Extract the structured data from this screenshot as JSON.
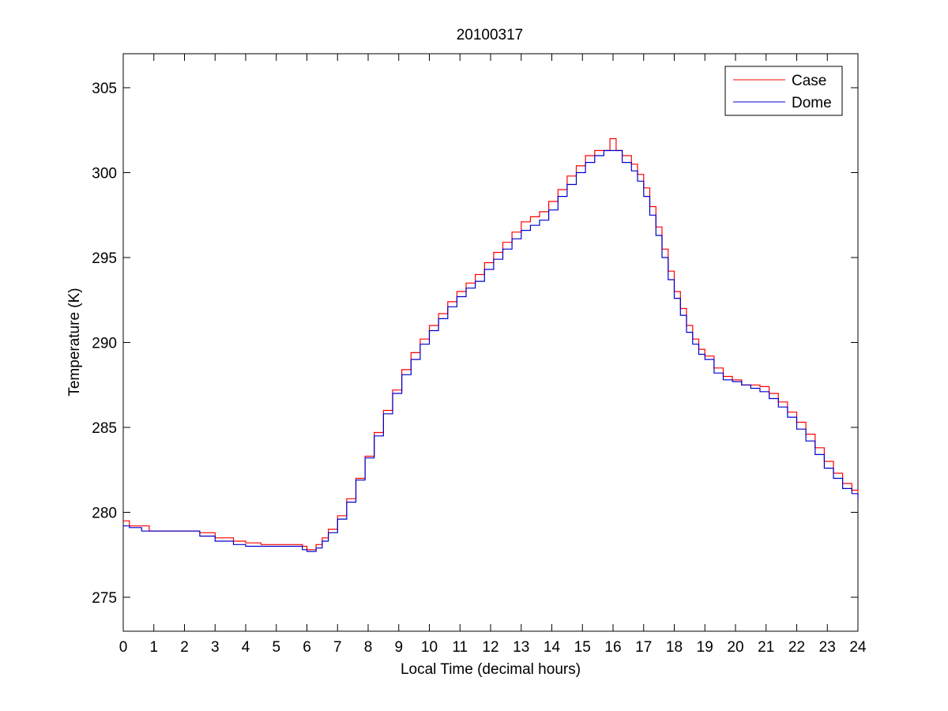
{
  "chart_data": {
    "type": "line",
    "title": "20100317",
    "xlabel": "Local Time (decimal hours)",
    "ylabel": "Temperature (K)",
    "xlim": [
      0,
      24
    ],
    "ylim": [
      273,
      307
    ],
    "xticks": [
      0,
      1,
      2,
      3,
      4,
      5,
      6,
      7,
      8,
      9,
      10,
      11,
      12,
      13,
      14,
      15,
      16,
      17,
      18,
      19,
      20,
      21,
      22,
      23,
      24
    ],
    "yticks": [
      275,
      280,
      285,
      290,
      295,
      300,
      305
    ],
    "grid": false,
    "legend": {
      "position": "top-right",
      "entries": [
        "Case",
        "Dome"
      ]
    },
    "series": [
      {
        "name": "Case",
        "color": "#ff0000",
        "x": [
          0.0,
          0.2,
          0.6,
          0.85,
          2.0,
          2.5,
          3.0,
          3.6,
          4.0,
          4.5,
          5.0,
          5.5,
          5.85,
          6.0,
          6.3,
          6.5,
          6.7,
          7.0,
          7.3,
          7.6,
          7.9,
          8.2,
          8.5,
          8.8,
          9.1,
          9.4,
          9.7,
          10.0,
          10.3,
          10.6,
          10.9,
          11.2,
          11.5,
          11.8,
          12.1,
          12.4,
          12.7,
          13.0,
          13.3,
          13.6,
          13.9,
          14.2,
          14.5,
          14.8,
          15.1,
          15.4,
          15.7,
          15.9,
          16.1,
          16.3,
          16.6,
          16.8,
          17.0,
          17.2,
          17.4,
          17.6,
          17.8,
          18.0,
          18.2,
          18.4,
          18.6,
          18.8,
          19.0,
          19.3,
          19.6,
          19.9,
          20.2,
          20.5,
          20.8,
          21.1,
          21.4,
          21.7,
          22.0,
          22.3,
          22.6,
          22.9,
          23.2,
          23.5,
          23.8,
          24.0
        ],
        "y": [
          279.5,
          279.2,
          279.2,
          278.9,
          278.9,
          278.8,
          278.5,
          278.3,
          278.2,
          278.1,
          278.1,
          278.1,
          278.0,
          277.8,
          278.1,
          278.5,
          279.0,
          279.8,
          280.8,
          282.0,
          283.3,
          284.7,
          286.0,
          287.2,
          288.4,
          289.4,
          290.2,
          291.0,
          291.7,
          292.4,
          293.0,
          293.5,
          294.0,
          294.7,
          295.3,
          295.9,
          296.5,
          297.1,
          297.4,
          297.7,
          298.3,
          299.0,
          299.8,
          300.4,
          301.0,
          301.3,
          301.3,
          302.0,
          301.3,
          301.0,
          300.5,
          299.9,
          299.1,
          298.0,
          296.8,
          295.5,
          294.2,
          293.0,
          292.0,
          291.0,
          290.2,
          289.6,
          289.2,
          288.5,
          288.0,
          287.8,
          287.5,
          287.5,
          287.4,
          287.0,
          286.5,
          285.9,
          285.3,
          284.6,
          283.8,
          283.0,
          282.3,
          281.7,
          281.3,
          281.0
        ]
      },
      {
        "name": "Dome",
        "color": "#0000cc",
        "x": [
          0.0,
          0.2,
          0.6,
          0.85,
          2.0,
          2.5,
          3.0,
          3.6,
          4.0,
          4.5,
          5.0,
          5.5,
          5.85,
          6.0,
          6.3,
          6.5,
          6.7,
          7.0,
          7.3,
          7.6,
          7.9,
          8.2,
          8.5,
          8.8,
          9.1,
          9.4,
          9.7,
          10.0,
          10.3,
          10.6,
          10.9,
          11.2,
          11.5,
          11.8,
          12.1,
          12.4,
          12.7,
          13.0,
          13.3,
          13.6,
          13.9,
          14.2,
          14.5,
          14.8,
          15.1,
          15.4,
          15.7,
          15.9,
          16.1,
          16.3,
          16.6,
          16.8,
          17.0,
          17.2,
          17.4,
          17.6,
          17.8,
          18.0,
          18.2,
          18.4,
          18.6,
          18.8,
          19.0,
          19.3,
          19.6,
          19.9,
          20.2,
          20.5,
          20.8,
          21.1,
          21.4,
          21.7,
          22.0,
          22.3,
          22.6,
          22.9,
          23.2,
          23.5,
          23.8,
          24.0
        ],
        "y": [
          279.2,
          279.1,
          278.9,
          278.9,
          278.9,
          278.6,
          278.3,
          278.1,
          278.0,
          278.0,
          278.0,
          278.0,
          277.8,
          277.7,
          277.9,
          278.3,
          278.8,
          279.6,
          280.6,
          281.9,
          283.2,
          284.5,
          285.8,
          287.0,
          288.1,
          289.0,
          289.9,
          290.7,
          291.4,
          292.1,
          292.7,
          293.2,
          293.6,
          294.3,
          294.9,
          295.5,
          296.1,
          296.6,
          296.9,
          297.2,
          297.8,
          298.6,
          299.3,
          300.0,
          300.6,
          301.0,
          301.3,
          301.3,
          301.3,
          300.6,
          300.1,
          299.5,
          298.6,
          297.5,
          296.3,
          295.0,
          293.7,
          292.6,
          291.6,
          290.6,
          289.9,
          289.3,
          289.0,
          288.2,
          287.8,
          287.7,
          287.5,
          287.3,
          287.1,
          286.7,
          286.2,
          285.6,
          284.9,
          284.2,
          283.4,
          282.6,
          282.0,
          281.4,
          281.1,
          280.8
        ]
      }
    ]
  }
}
